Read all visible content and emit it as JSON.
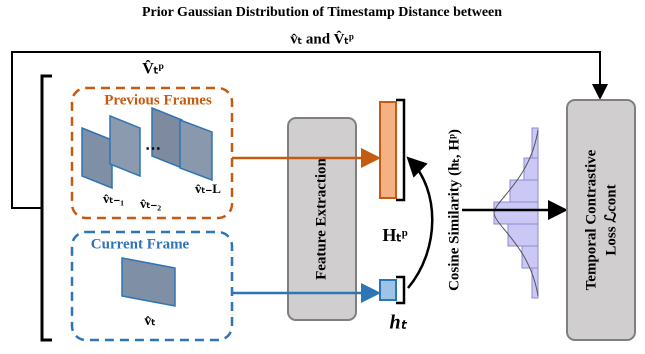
{
  "header": {
    "title": "Prior Gaussian Distribution of Timestamp Distance between",
    "subtitle": "v̂ₜ and V̂ₜᵖ"
  },
  "previous": {
    "set_label": "V̂ₜᵖ",
    "title": "Previous Frames",
    "frames": [
      "v̂ₜ₋₁",
      "v̂ₜ₋₂",
      "v̂ₜ₋L"
    ]
  },
  "current": {
    "title": "Current Frame",
    "frame": "v̂ₜ"
  },
  "encoder": "Feature Extraction",
  "features": {
    "previous": "Hₜᵖ",
    "current": "hₜ"
  },
  "similarity": "Cosine Similarity (hₜ, Hᵖ)",
  "loss": [
    "Temporal Contrastive",
    "Loss ℒcont"
  ]
}
